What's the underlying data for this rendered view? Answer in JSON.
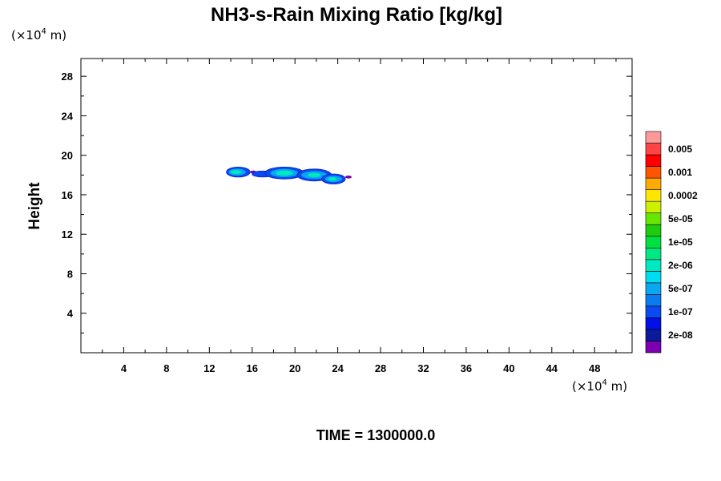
{
  "chart_data": {
    "type": "heatmap",
    "title": "NH3-s-Rain Mixing Ratio [kg/kg]",
    "xlabel": "",
    "ylabel": "Height",
    "x_unit_prefix": "(×10",
    "x_unit_exp": "4",
    "x_unit_suffix": " m)",
    "y_unit_prefix": "(×10",
    "y_unit_exp": "4",
    "y_unit_suffix": " m)",
    "xlim": [
      0,
      51.5
    ],
    "ylim": [
      0,
      29.8
    ],
    "x_ticks": [
      4,
      8,
      12,
      16,
      20,
      24,
      28,
      32,
      36,
      40,
      44,
      48
    ],
    "y_ticks": [
      4,
      8,
      12,
      16,
      20,
      24,
      28
    ],
    "x_minor_step": 2,
    "y_minor_step": 2,
    "grid": false,
    "time_label": "TIME = 1300000.0",
    "colorbar": {
      "colors": [
        "#7a00b0",
        "#0a1a9a",
        "#0010e6",
        "#0a4af0",
        "#0a7cf0",
        "#0aa6f0",
        "#00dcf0",
        "#00e8c0",
        "#00e882",
        "#00e040",
        "#1ecc12",
        "#66e600",
        "#ccf000",
        "#ffe600",
        "#ffaa00",
        "#ff5500",
        "#ff0000",
        "#ff4444",
        "#ff9999"
      ],
      "labels": [
        "2e-08",
        "1e-07",
        "5e-07",
        "2e-06",
        "1e-05",
        "5e-05",
        "0.0002",
        "0.001",
        "0.005"
      ]
    },
    "features": [
      {
        "level": 3,
        "cx": 14.7,
        "cy": 18.3,
        "rx": 1.1,
        "ry": 0.5
      },
      {
        "level": 5,
        "cx": 14.6,
        "cy": 18.3,
        "rx": 0.8,
        "ry": 0.35
      },
      {
        "level": 7,
        "cx": 14.5,
        "cy": 18.3,
        "rx": 0.5,
        "ry": 0.2
      },
      {
        "level": 0,
        "cx": 16.1,
        "cy": 18.3,
        "rx": 0.3,
        "ry": 0.15
      },
      {
        "level": 3,
        "cx": 17.0,
        "cy": 18.1,
        "rx": 1.0,
        "ry": 0.3
      },
      {
        "level": 3,
        "cx": 19.0,
        "cy": 18.2,
        "rx": 1.8,
        "ry": 0.6
      },
      {
        "level": 5,
        "cx": 19.0,
        "cy": 18.2,
        "rx": 1.3,
        "ry": 0.42
      },
      {
        "level": 7,
        "cx": 19.0,
        "cy": 18.2,
        "rx": 0.8,
        "ry": 0.26
      },
      {
        "level": 3,
        "cx": 21.8,
        "cy": 18.0,
        "rx": 1.6,
        "ry": 0.6
      },
      {
        "level": 5,
        "cx": 21.8,
        "cy": 18.0,
        "rx": 1.2,
        "ry": 0.4
      },
      {
        "level": 7,
        "cx": 21.8,
        "cy": 18.0,
        "rx": 0.6,
        "ry": 0.22
      },
      {
        "level": 3,
        "cx": 23.6,
        "cy": 17.6,
        "rx": 1.1,
        "ry": 0.5
      },
      {
        "level": 5,
        "cx": 23.6,
        "cy": 17.6,
        "rx": 0.8,
        "ry": 0.32
      },
      {
        "level": 7,
        "cx": 23.5,
        "cy": 17.6,
        "rx": 0.4,
        "ry": 0.18
      },
      {
        "level": 0,
        "cx": 25.0,
        "cy": 17.8,
        "rx": 0.3,
        "ry": 0.15
      }
    ]
  }
}
